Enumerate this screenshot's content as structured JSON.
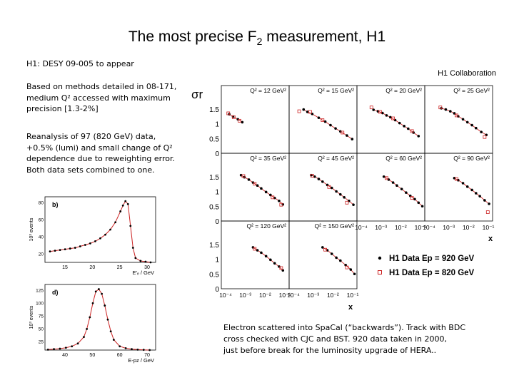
{
  "slide": {
    "title_main": "The most precise F",
    "title_sub": "2",
    "title_rest": " measurement, H1",
    "subtitle": "H1: DESY 09-005 to appear",
    "paragraph1": "Based on methods detailed in 08-171,\nmedium Q² accessed with maximum\nprecision [1.3-2%]",
    "paragraph2": "Reanalysis of 97 (820 GeV) data,\n+0.5% (lumi) and small change of Q²\ndependence due to reweighting error.\nBoth data sets combined to one.",
    "caption": "Electron scattered into SpaCal (“backwards”). Track with BDC\ncross checked with CJC and BST. 920 data taken in 2000,\njust before break for the luminosity upgrade of HERA.."
  },
  "chart_data": [
    {
      "type": "scatter",
      "collaboration": "H1 Collaboration",
      "ylabel": "σr",
      "xlabel": "x",
      "xscale": "log",
      "xlim": [
        0.0001,
        0.1
      ],
      "ylim": [
        0,
        2
      ],
      "yticks": [
        "0",
        "0.5",
        "1",
        "1.5"
      ],
      "xticks": [
        "10⁻⁴",
        "10⁻³",
        "10⁻²",
        "10⁻¹"
      ],
      "legend": [
        {
          "marker": "●",
          "label": "H1 Data Ep = 920 GeV",
          "color": "#000000"
        },
        {
          "marker": "□",
          "label": "H1 Data Ep = 820 GeV",
          "color": "#cc2222"
        }
      ],
      "panels": [
        {
          "label": "Q² = 12 GeV²",
          "x920": [
            0.0002,
            0.0003,
            0.0005,
            0.0008
          ],
          "y920": [
            1.32,
            1.24,
            1.15,
            1.05
          ],
          "x820": [
            0.00018,
            0.00032,
            0.0006
          ],
          "y820": [
            1.35,
            1.22,
            1.1
          ]
        },
        {
          "label": "Q² = 15 GeV²",
          "x920": [
            0.0004,
            0.0006,
            0.001,
            0.002,
            0.004,
            0.007,
            0.012,
            0.02,
            0.04,
            0.07
          ],
          "y920": [
            1.48,
            1.4,
            1.33,
            1.2,
            1.07,
            0.95,
            0.84,
            0.74,
            0.6,
            0.48
          ],
          "x820": [
            0.00025,
            0.0008,
            0.003,
            0.025
          ],
          "y820": [
            1.42,
            1.4,
            1.12,
            0.7
          ]
        },
        {
          "label": "Q² = 20 GeV²",
          "x920": [
            0.0005,
            0.0008,
            0.0013,
            0.002,
            0.003,
            0.005,
            0.008,
            0.013,
            0.02,
            0.035,
            0.06
          ],
          "y920": [
            1.47,
            1.42,
            1.36,
            1.28,
            1.22,
            1.12,
            1.02,
            0.92,
            0.83,
            0.7,
            0.58
          ],
          "x820": [
            0.0004,
            0.001,
            0.004,
            0.03
          ],
          "y820": [
            1.55,
            1.4,
            1.18,
            0.75
          ]
        },
        {
          "label": "Q² = 25 GeV²",
          "x920": [
            0.0005,
            0.0008,
            0.0013,
            0.002,
            0.003,
            0.005,
            0.008,
            0.013,
            0.02,
            0.035,
            0.06
          ],
          "y920": [
            1.52,
            1.48,
            1.42,
            1.35,
            1.25,
            1.15,
            1.05,
            0.95,
            0.85,
            0.72,
            0.62
          ],
          "x820": [
            0.00045,
            0.0025,
            0.05
          ],
          "y820": [
            1.55,
            1.28,
            0.55
          ]
        },
        {
          "label": "Q² = 35 GeV²",
          "x920": [
            0.0007,
            0.001,
            0.0016,
            0.0025,
            0.004,
            0.006,
            0.01,
            0.016,
            0.025,
            0.04,
            0.06
          ],
          "y920": [
            1.55,
            1.48,
            1.4,
            1.3,
            1.2,
            1.1,
            0.98,
            0.88,
            0.78,
            0.68,
            0.56
          ],
          "x820": [
            0.0009,
            0.003,
            0.02,
            0.05
          ],
          "y820": [
            1.52,
            1.26,
            0.8,
            0.55
          ]
        },
        {
          "label": "Q² = 45 GeV²",
          "x920": [
            0.0009,
            0.0013,
            0.002,
            0.003,
            0.005,
            0.008,
            0.013,
            0.02,
            0.03,
            0.05,
            0.08
          ],
          "y920": [
            1.55,
            1.5,
            1.42,
            1.33,
            1.22,
            1.12,
            1.0,
            0.9,
            0.8,
            0.68,
            0.55
          ],
          "x820": [
            0.001,
            0.006,
            0.04
          ],
          "y820": [
            1.53,
            1.15,
            0.62
          ]
        },
        {
          "label": "Q² = 60 GeV²",
          "x920": [
            0.0015,
            0.0025,
            0.004,
            0.006,
            0.01,
            0.016,
            0.025,
            0.04,
            0.06,
            0.09
          ],
          "y920": [
            1.5,
            1.4,
            1.3,
            1.2,
            1.08,
            0.96,
            0.85,
            0.74,
            0.62,
            0.5
          ],
          "x820": [
            0.002,
            0.03
          ],
          "y820": [
            1.45,
            0.78
          ]
        },
        {
          "label": "Q² = 90 GeV²",
          "x920": [
            0.002,
            0.003,
            0.005,
            0.008,
            0.013,
            0.02,
            0.03,
            0.05,
            0.08
          ],
          "y920": [
            1.45,
            1.38,
            1.28,
            1.16,
            1.05,
            0.94,
            0.84,
            0.7,
            0.58
          ],
          "x820": [
            0.0025,
            0.07
          ],
          "y820": [
            1.42,
            0.3
          ]
        },
        {
          "label": "Q² = 120 GeV²",
          "x920": [
            0.0025,
            0.004,
            0.006,
            0.01,
            0.016,
            0.025,
            0.04,
            0.06
          ],
          "y920": [
            1.4,
            1.3,
            1.22,
            1.1,
            0.98,
            0.86,
            0.75,
            0.62
          ],
          "x820": [
            0.003,
            0.05
          ],
          "y820": [
            1.35,
            0.7
          ]
        },
        {
          "label": "Q² = 150 GeV²",
          "x920": [
            0.003,
            0.005,
            0.008,
            0.013,
            0.02,
            0.035,
            0.06,
            0.09
          ],
          "y920": [
            1.4,
            1.3,
            1.18,
            1.05,
            0.95,
            0.8,
            0.65,
            0.5
          ],
          "x820": [
            0.004,
            0.04
          ],
          "y820": [
            1.32,
            0.72
          ]
        }
      ]
    },
    {
      "type": "histogram",
      "panel_label": "b)",
      "ylabel": "10³ events",
      "xlabel": "E'ₑ / GeV",
      "xticks": [
        "15",
        "20",
        "25",
        "30"
      ],
      "yticks": [
        "20",
        "40",
        "60",
        "80"
      ],
      "xlim": [
        10,
        32
      ],
      "ylim": [
        0,
        90
      ],
      "x": [
        11,
        12,
        13,
        14,
        15,
        16,
        17,
        18,
        19,
        20,
        21,
        22,
        23,
        24,
        25,
        25.5,
        26,
        26.5,
        27,
        27.5,
        28,
        29,
        30,
        31
      ],
      "values": [
        15,
        16,
        17,
        18,
        19,
        20,
        22,
        24,
        26,
        29,
        33,
        38,
        45,
        55,
        70,
        78,
        84,
        80,
        50,
        20,
        6,
        2,
        1,
        0
      ]
    },
    {
      "type": "histogram",
      "panel_label": "d)",
      "ylabel": "10³ events",
      "xlabel": "E-pz / GeV",
      "xticks": [
        "40",
        "50",
        "60",
        "70"
      ],
      "yticks": [
        "25",
        "50",
        "75",
        "100",
        "125"
      ],
      "xlim": [
        35,
        72
      ],
      "ylim": [
        0,
        140
      ],
      "x": [
        36,
        38,
        40,
        42,
        44,
        46,
        48,
        49,
        50,
        51,
        52,
        53,
        54,
        55,
        56,
        57,
        58,
        60,
        62,
        64,
        66,
        68,
        70
      ],
      "values": [
        1,
        2,
        3,
        5,
        8,
        14,
        28,
        45,
        70,
        100,
        125,
        130,
        120,
        95,
        65,
        40,
        22,
        8,
        4,
        2,
        1,
        0.5,
        0
      ]
    }
  ]
}
